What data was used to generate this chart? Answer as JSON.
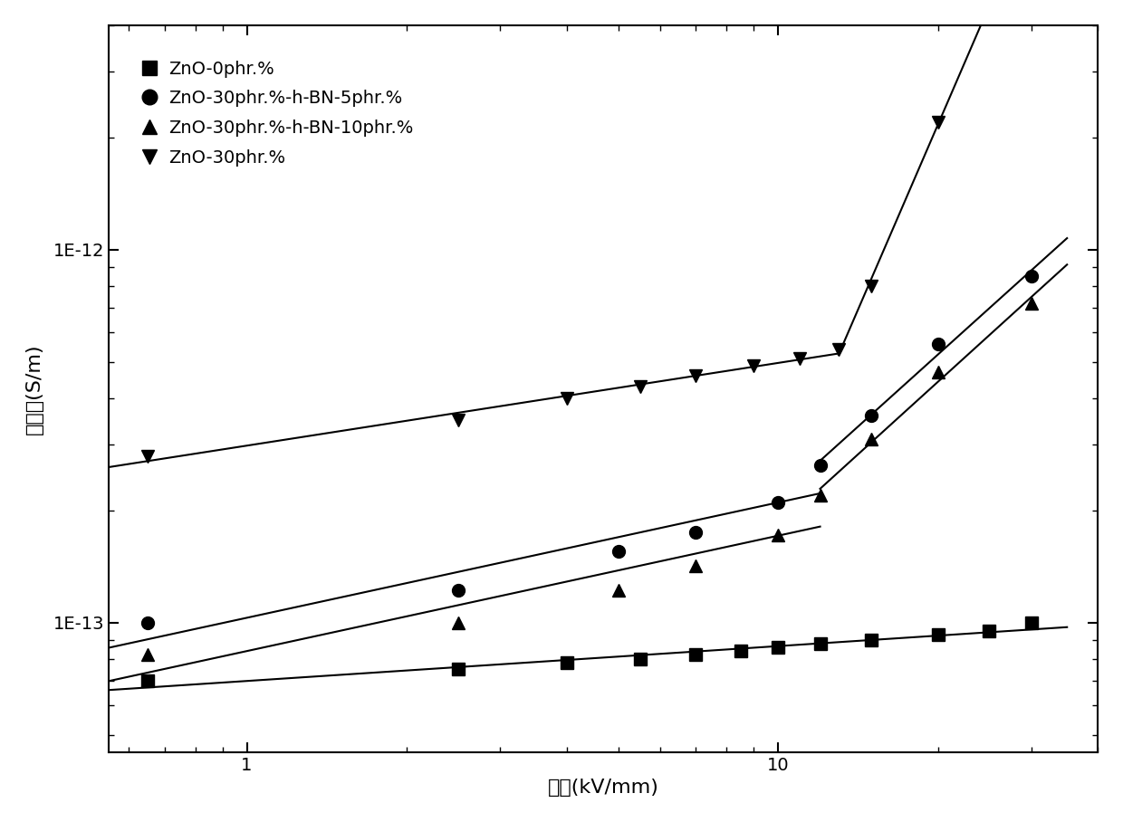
{
  "xlabel": "电场(kV/mm)",
  "ylabel": "电导率(S/m)",
  "series": [
    {
      "label": "ZnO-0phr.%",
      "marker": "s",
      "x": [
        0.65,
        2.5,
        4.0,
        5.5,
        7.0,
        8.5,
        10.0,
        12.0,
        15.0,
        20.0,
        25.0,
        30.0
      ],
      "y": [
        7e-14,
        7.5e-14,
        7.8e-14,
        8e-14,
        8.2e-14,
        8.4e-14,
        8.6e-14,
        8.8e-14,
        9e-14,
        9.3e-14,
        9.5e-14,
        1e-13
      ],
      "knee": null
    },
    {
      "label": "ZnO-30phr.%-h-BN-5phr.%",
      "marker": "o",
      "x": [
        0.65,
        2.5,
        5.0,
        7.0,
        10.0,
        12.0,
        15.0,
        20.0,
        30.0
      ],
      "y": [
        1e-13,
        1.22e-13,
        1.55e-13,
        1.75e-13,
        2.1e-13,
        2.65e-13,
        3.6e-13,
        5.6e-13,
        8.5e-13
      ],
      "knee": 6
    },
    {
      "label": "ZnO-30phr.%-h-BN-10phr.%",
      "marker": "^",
      "x": [
        0.65,
        2.5,
        5.0,
        7.0,
        10.0,
        12.0,
        15.0,
        20.0,
        30.0
      ],
      "y": [
        8.2e-14,
        1e-13,
        1.22e-13,
        1.42e-13,
        1.72e-13,
        2.2e-13,
        3.1e-13,
        4.7e-13,
        7.2e-13
      ],
      "knee": 6
    },
    {
      "label": "ZnO-30phr.%",
      "marker": "v",
      "x": [
        0.65,
        2.5,
        4.0,
        5.5,
        7.0,
        9.0,
        11.0,
        13.0,
        15.0,
        20.0
      ],
      "y": [
        2.8e-13,
        3.5e-13,
        4e-13,
        4.3e-13,
        4.6e-13,
        4.9e-13,
        5.1e-13,
        5.4e-13,
        8e-13,
        2.2e-12
      ],
      "knee": 8
    }
  ],
  "xlim": [
    0.55,
    40
  ],
  "ylim": [
    4.5e-14,
    4e-12
  ],
  "marker_size": 10,
  "line_width": 1.5,
  "font_size_label": 16,
  "font_size_tick": 14,
  "font_size_legend": 14,
  "legend_labelspacing": 0.7
}
